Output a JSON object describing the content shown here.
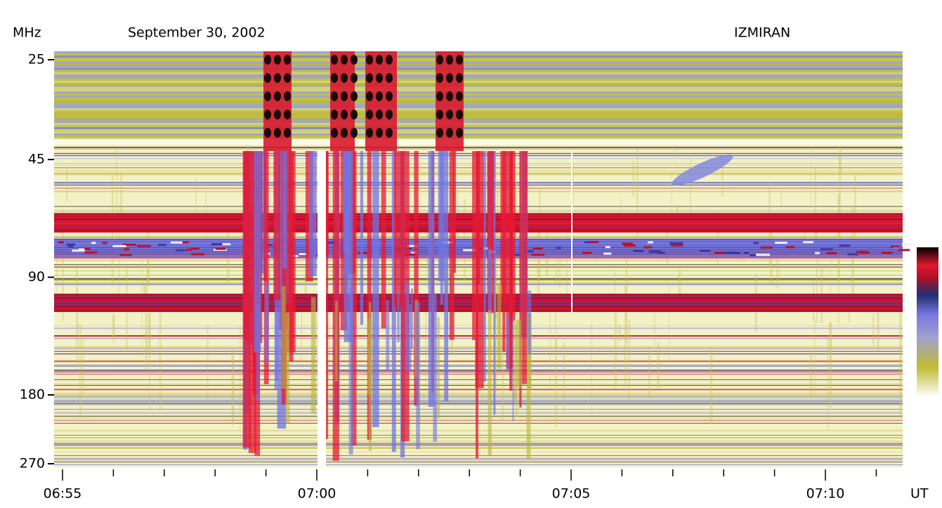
{
  "chart_data": {
    "type": "spectrogram",
    "title": "September 30, 2002",
    "source": "IZMIRAN",
    "y_label": "MHz",
    "x_label": "UT",
    "x": [
      "06:55",
      "07:00",
      "07:05",
      "07:10"
    ],
    "ylim": [
      25,
      270
    ],
    "yticks": [
      25,
      45,
      90,
      180,
      270
    ],
    "log_y": true
  }
}
